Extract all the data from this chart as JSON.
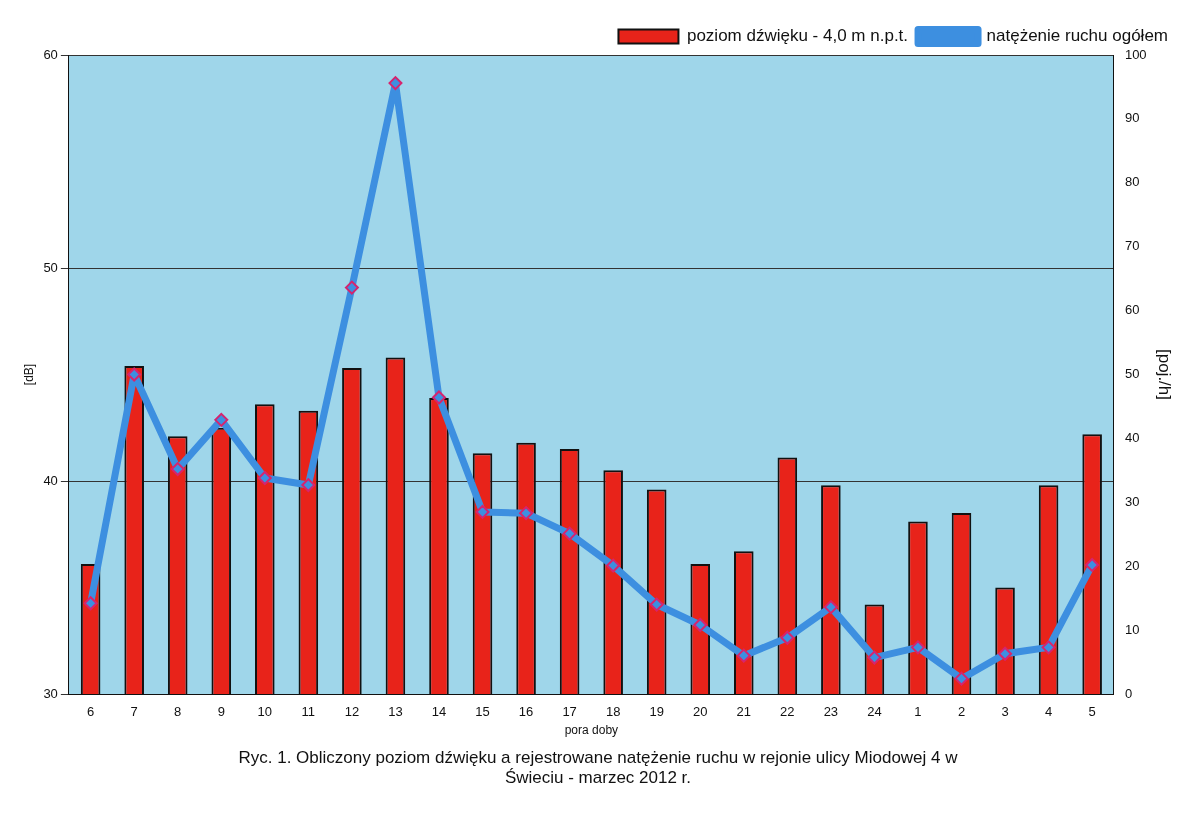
{
  "chart_data": {
    "type": "bar",
    "title": "Ryc. 1. Obliczony poziom dźwięku a rejestrowane natężenie ruchu w rejonie ulicy Miodowej 4 w Świeciu - marzec 2012 r.",
    "xlabel": "pora doby",
    "ylabel": "[dB]",
    "y2label": "[poj./h]",
    "categories": [
      "6",
      "7",
      "8",
      "9",
      "10",
      "11",
      "12",
      "13",
      "14",
      "15",
      "16",
      "17",
      "18",
      "19",
      "20",
      "21",
      "22",
      "23",
      "24",
      "1",
      "2",
      "3",
      "4",
      "5"
    ],
    "series": [
      {
        "name": "poziom dźwięku - 4,0 m n.p.t.",
        "color": "#e8231a",
        "values": [
          36.1,
          45.4,
          42.1,
          42.5,
          43.6,
          43.3,
          45.3,
          45.8,
          43.9,
          41.3,
          41.8,
          41.5,
          40.5,
          39.6,
          36.1,
          36.7,
          41.1,
          39.8,
          34.2,
          38.1,
          38.5,
          35.0,
          39.8,
          42.2
        ]
      },
      {
        "name": "natężenie ruchu ogółem",
        "type": "line",
        "axis": "y2",
        "color": "#3d8fe0",
        "marker": "diamond",
        "values": [
          14.2,
          50.0,
          35.2,
          42.9,
          33.8,
          32.7,
          63.6,
          95.6,
          46.4,
          28.5,
          28.3,
          25.1,
          20.1,
          14.0,
          10.8,
          6.0,
          8.8,
          13.6,
          5.7,
          7.3,
          2.4,
          6.3,
          7.3,
          20.2
        ]
      }
    ],
    "ylim": [
      30,
      60
    ],
    "yticks": [
      30,
      40,
      50,
      60
    ],
    "y2lim": [
      0,
      100
    ],
    "y2ticks": [
      0,
      10,
      20,
      30,
      40,
      50,
      60,
      70,
      80,
      90,
      100
    ],
    "grid": "y",
    "legend": "top right"
  }
}
